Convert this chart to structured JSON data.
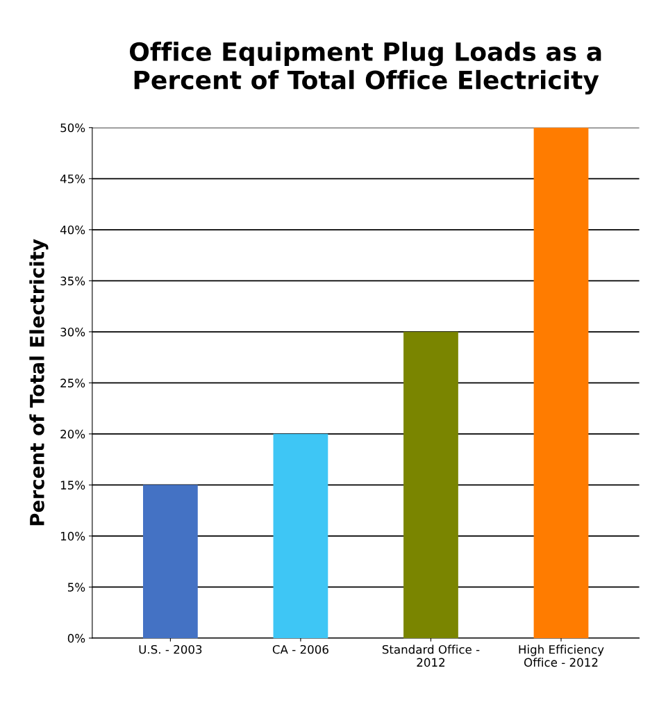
{
  "chart_data": {
    "type": "bar",
    "title": "Office Equipment Plug Loads as a\nPercent of Total Office Electricity",
    "ylabel": "Percent of Total Electricity",
    "categories": [
      "U.S. - 2003",
      "CA - 2006",
      "Standard Office -\n2012",
      "High Efficiency\nOffice - 2012"
    ],
    "values": [
      15,
      20,
      30,
      50
    ],
    "colors": [
      "#4472c4",
      "#3ec6f5",
      "#7a8500",
      "#ff7c00"
    ],
    "ylim": [
      0,
      50
    ],
    "yticks": [
      {
        "value": 0,
        "label": "0%"
      },
      {
        "value": 5,
        "label": "5%"
      },
      {
        "value": 10,
        "label": "10%"
      },
      {
        "value": 15,
        "label": "15%"
      },
      {
        "value": 20,
        "label": "20%"
      },
      {
        "value": 25,
        "label": "25%"
      },
      {
        "value": 30,
        "label": "30%"
      },
      {
        "value": 35,
        "label": "35%"
      },
      {
        "value": 40,
        "label": "40%"
      },
      {
        "value": 45,
        "label": "45%"
      },
      {
        "value": 50,
        "label": "50%"
      }
    ],
    "grid": "y"
  }
}
